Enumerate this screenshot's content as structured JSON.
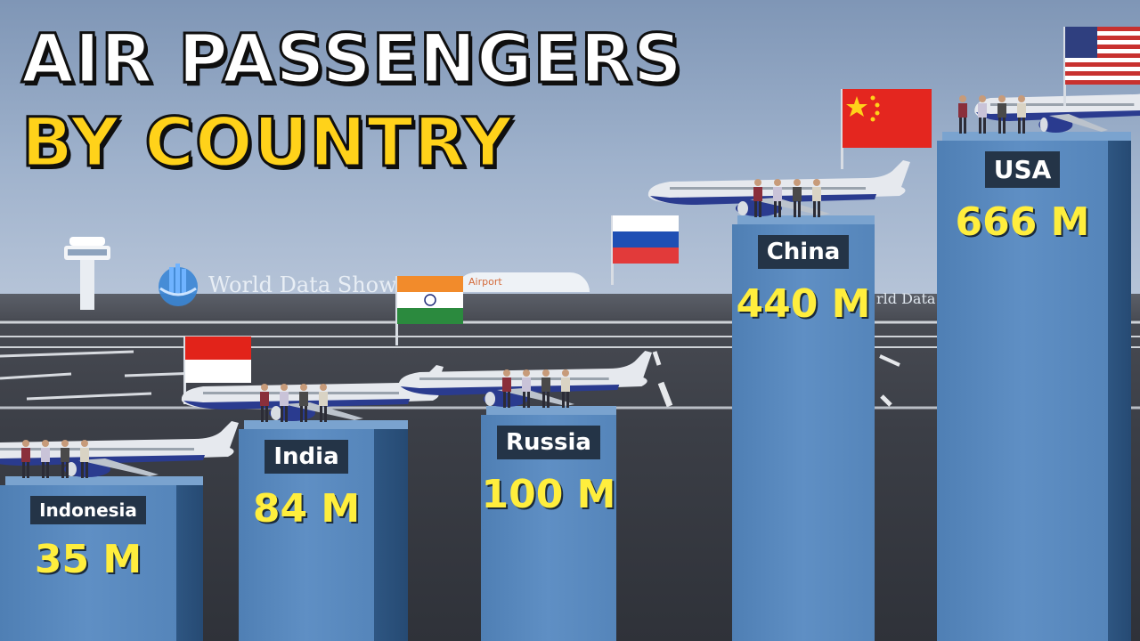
{
  "title_line1": "AIR PASSENGERS",
  "title_line2": "BY COUNTRY",
  "watermark": "World Data Show",
  "watermark_right": "rld Data Sh",
  "airport_sign": "Airport",
  "colors": {
    "bar": "#5a8bc0",
    "label_bg": "#243447",
    "value": "#ffee3d",
    "title_accent": "#ffd21a"
  },
  "chart_data": {
    "type": "bar",
    "title": "AIR PASSENGERS BY COUNTRY",
    "categories": [
      "Indonesia",
      "India",
      "Russia",
      "China",
      "USA"
    ],
    "values": [
      35,
      84,
      100,
      440,
      666
    ],
    "value_labels": [
      "35 M",
      "84 M",
      "100 M",
      "440 M",
      "666 M"
    ],
    "unit": "M",
    "flags": [
      "indonesia-flag-icon",
      "india-flag-icon",
      "russia-flag-icon",
      "china-flag-icon",
      "usa-flag-icon"
    ]
  }
}
